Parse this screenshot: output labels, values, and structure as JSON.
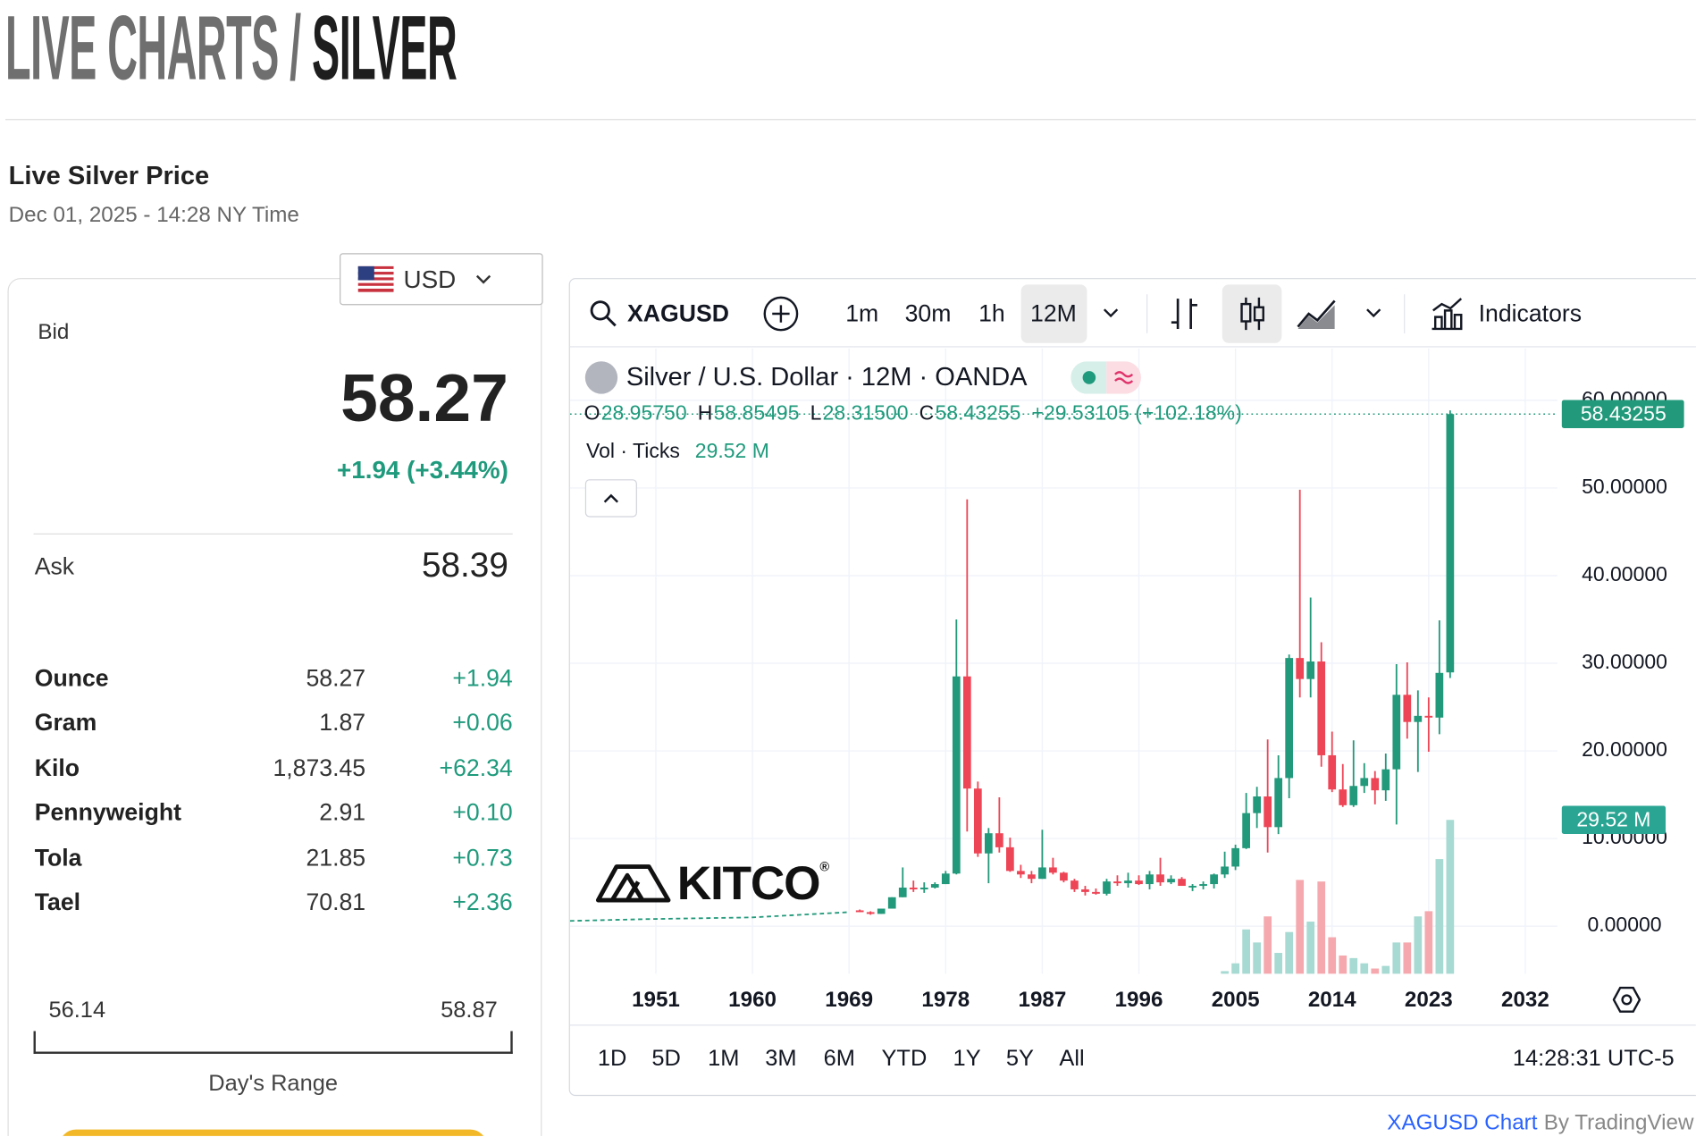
{
  "header": {
    "title_prefix": "LIVE CHARTS /",
    "title_main": "SILVER"
  },
  "price": {
    "title": "Live Silver Price",
    "timestamp": "Dec 01, 2025 - 14:28 NY Time",
    "currency": "USD",
    "bid_label": "Bid",
    "bid": "58.27",
    "change": "+1.94 (+3.44%)",
    "ask_label": "Ask",
    "ask": "58.39",
    "units": [
      [
        "Ounce",
        "58.27",
        "+1.94"
      ],
      [
        "Gram",
        "1.87",
        "+0.06"
      ],
      [
        "Kilo",
        "1,873.45",
        "+62.34"
      ],
      [
        "Pennyweight",
        "2.91",
        "+0.10"
      ],
      [
        "Tola",
        "21.85",
        "+0.73"
      ],
      [
        "Tael",
        "70.81",
        "+2.36"
      ]
    ],
    "range_low": "56.14",
    "range_high": "58.87",
    "range_label": "Day's Range"
  },
  "toolbar": {
    "symbol": "XAGUSD",
    "intervals": [
      "1m",
      "30m",
      "1h",
      "12M"
    ],
    "indicators": "Indicators"
  },
  "ranges": [
    "1D",
    "5D",
    "1M",
    "3M",
    "6M",
    "YTD",
    "1Y",
    "5Y",
    "All"
  ],
  "clock": "14:28:31 UTC-5",
  "footer": {
    "link": "XAGUSD Chart",
    "by": "By TradingView"
  },
  "logo": {
    "text": "KITCO",
    "mark": "®"
  },
  "chart_data": {
    "type": "candlestick",
    "title": "Silver / U.S. Dollar · 12M · OANDA",
    "ohlc_legend": [
      {
        "label": "O",
        "value": "28.95750"
      },
      {
        "label": "H",
        "value": "58.85495"
      },
      {
        "label": "L",
        "value": "28.31500"
      },
      {
        "label": "C",
        "value": "58.43255"
      }
    ],
    "change_legend": "+29.53105 (+102.18%)",
    "volume_label": "Vol · Ticks",
    "volume_legend": "29.52 M",
    "price_badge": "58.43255",
    "volume_badge": "29.52 M",
    "up_color": "#22997a",
    "down_color": "#ee4556",
    "volume_up_color": "#a6dad2",
    "volume_down_color": "#f5a9ae",
    "volume_badge_color": "#2aa593",
    "xlim": [
      1943,
      2035
    ],
    "xticks": [
      1951,
      1960,
      1969,
      1978,
      1987,
      1996,
      2005,
      2014,
      2023,
      2032
    ],
    "ylim": [
      -5.43,
      65.93
    ],
    "yticks": [
      {
        "value": 0,
        "label": "0.00000"
      },
      {
        "value": 10,
        "label": "10.00000"
      },
      {
        "value": 20,
        "label": "20.00000"
      },
      {
        "value": 30,
        "label": "30.00000"
      },
      {
        "value": 40,
        "label": "40.00000"
      },
      {
        "value": 50,
        "label": "50.00000"
      },
      {
        "value": 60,
        "label": "60.00000"
      }
    ],
    "y2lim": [
      0,
      120
    ],
    "grid": true,
    "history": {
      "x": [
        1943,
        1950,
        1960,
        1969
      ],
      "values": [
        0.6,
        0.8,
        1.0,
        1.6
      ]
    },
    "x": [
      1970,
      1971,
      1972,
      1973,
      1974,
      1975,
      1976,
      1977,
      1978,
      1979,
      1980,
      1981,
      1982,
      1983,
      1984,
      1985,
      1986,
      1987,
      1988,
      1989,
      1990,
      1991,
      1992,
      1993,
      1994,
      1995,
      1996,
      1997,
      1998,
      1999,
      2000,
      2001,
      2002,
      2003,
      2004,
      2005,
      2006,
      2007,
      2008,
      2009,
      2010,
      2011,
      2012,
      2013,
      2014,
      2015,
      2016,
      2017,
      2018,
      2019,
      2020,
      2021,
      2022,
      2023,
      2024,
      2025
    ],
    "open": [
      1.8,
      1.6,
      1.4,
      2.0,
      3.3,
      4.4,
      4.2,
      4.4,
      4.8,
      6.0,
      28.5,
      15.7,
      8.3,
      10.6,
      9.0,
      6.3,
      5.9,
      5.4,
      6.7,
      6.1,
      5.2,
      4.2,
      3.9,
      3.7,
      5.1,
      4.9,
      5.2,
      4.8,
      5.9,
      5.0,
      5.4,
      4.6,
      4.6,
      4.8,
      5.9,
      6.8,
      8.9,
      12.9,
      14.8,
      11.3,
      16.9,
      30.6,
      28.2,
      30.2,
      19.5,
      15.6,
      13.8,
      16.0,
      16.9,
      15.5,
      17.9,
      26.4,
      23.3,
      24.0,
      23.8,
      28.9575
    ],
    "high": [
      1.9,
      1.7,
      2.0,
      3.3,
      6.7,
      5.2,
      5.0,
      5.0,
      6.3,
      35,
      48.7,
      16.5,
      11.2,
      14.7,
      10.1,
      7.0,
      6.3,
      11.0,
      7.8,
      6.2,
      5.4,
      4.6,
      4.3,
      5.4,
      5.8,
      6.1,
      5.8,
      6.3,
      7.8,
      5.8,
      5.6,
      4.8,
      5.1,
      6.0,
      8.5,
      9.3,
      15.2,
      15.9,
      21.3,
      19.5,
      31.0,
      49.8,
      37.5,
      32.4,
      22.2,
      18.5,
      21.2,
      18.6,
      17.7,
      19.7,
      29.9,
      30.1,
      26.9,
      26.1,
      34.9,
      58.85495
    ],
    "low": [
      1.6,
      1.3,
      1.4,
      2.0,
      3.3,
      3.9,
      3.8,
      4.3,
      4.8,
      5.9,
      10.8,
      7.9,
      4.9,
      8.4,
      6.2,
      5.5,
      4.9,
      5.4,
      5.9,
      5.0,
      3.9,
      3.5,
      3.6,
      3.5,
      4.6,
      4.4,
      4.7,
      4.2,
      4.6,
      4.8,
      4.6,
      4.0,
      4.2,
      4.3,
      5.5,
      6.4,
      8.8,
      11.2,
      8.4,
      10.5,
      14.6,
      26.1,
      26.1,
      18.2,
      15.3,
      13.6,
      13.6,
      15.2,
      13.9,
      14.3,
      11.6,
      21.4,
      17.6,
      19.9,
      21.9,
      28.315
    ],
    "close": [
      1.6,
      1.4,
      2.0,
      3.3,
      4.4,
      4.2,
      4.4,
      4.8,
      6.0,
      28.5,
      15.7,
      8.3,
      10.6,
      9.0,
      6.3,
      5.9,
      5.4,
      6.7,
      6.1,
      5.2,
      4.2,
      3.9,
      3.7,
      5.1,
      4.9,
      5.2,
      4.8,
      5.9,
      5.0,
      5.4,
      4.6,
      4.6,
      4.8,
      5.9,
      6.8,
      8.9,
      12.9,
      14.8,
      11.3,
      16.9,
      30.6,
      28.2,
      30.2,
      19.5,
      15.6,
      13.8,
      16.0,
      16.9,
      15.5,
      17.9,
      26.4,
      23.3,
      24.0,
      23.8,
      28.9,
      58.43255
    ],
    "volume": [
      0,
      0,
      0,
      0,
      0,
      0,
      0,
      0,
      0,
      0,
      0,
      0,
      0,
      0,
      0,
      0,
      0,
      0,
      0,
      0,
      0,
      0,
      0,
      0,
      0,
      0,
      0,
      0,
      0,
      0,
      0,
      0,
      0,
      0,
      0.5,
      2,
      8.5,
      6,
      11,
      4,
      8,
      18,
      10,
      17.7,
      7,
      3.5,
      3,
      2,
      1,
      1.5,
      6,
      6,
      11,
      12,
      22,
      29.52
    ]
  }
}
